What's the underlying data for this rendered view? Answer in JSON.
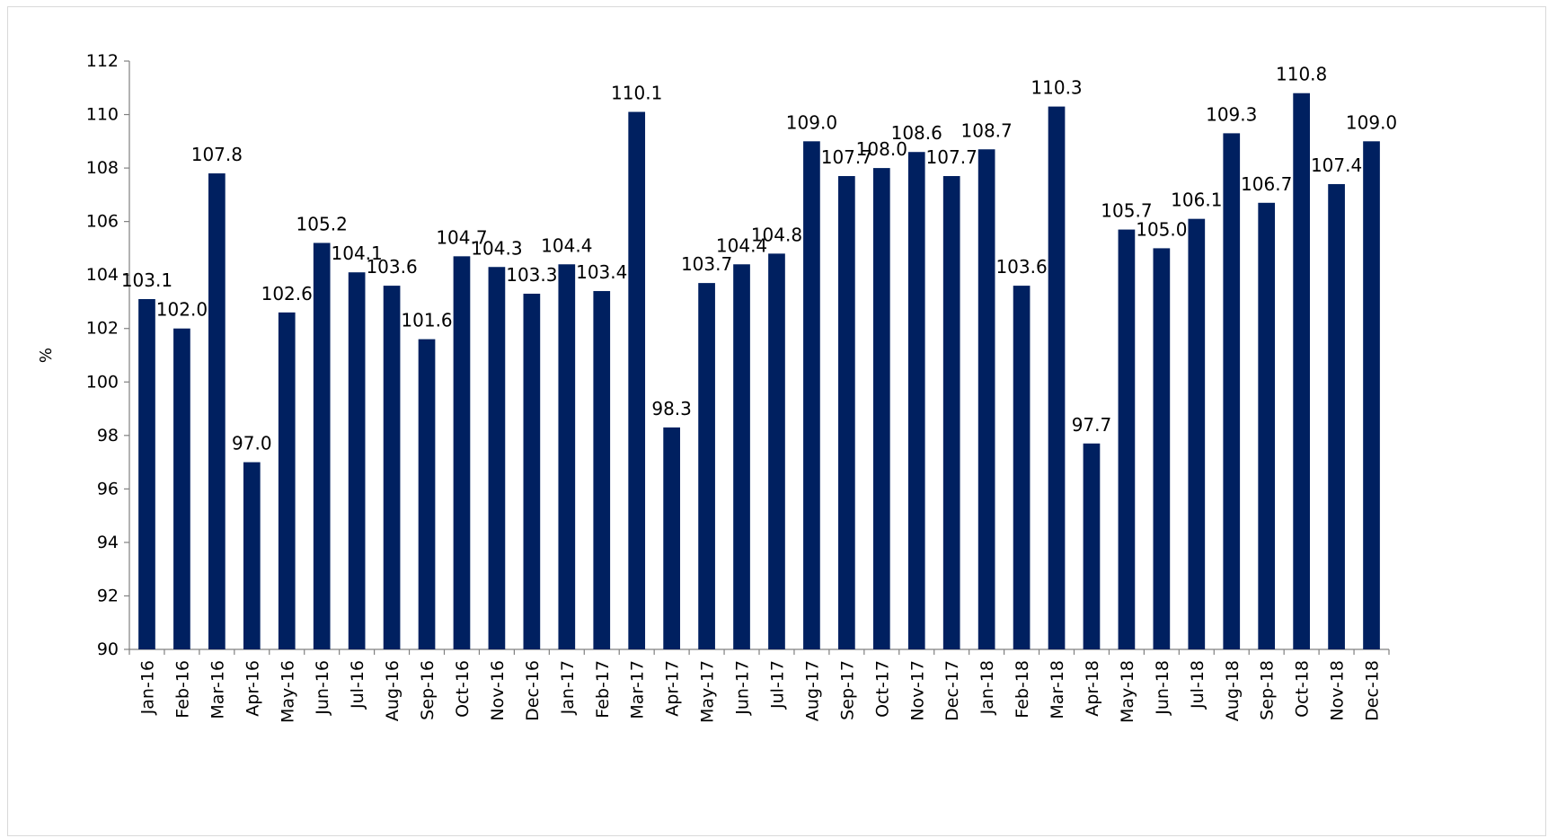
{
  "chart_data": {
    "type": "bar",
    "title": "",
    "xlabel": "",
    "ylabel": "%",
    "ylim": [
      90,
      112
    ],
    "yticks": [
      90,
      92,
      94,
      96,
      98,
      100,
      102,
      104,
      106,
      108,
      110,
      112
    ],
    "grid": false,
    "legend": "none",
    "bar_color": "#002060",
    "categories": [
      "Jan-16",
      "Feb-16",
      "Mar-16",
      "Apr-16",
      "May-16",
      "Jun-16",
      "Jul-16",
      "Aug-16",
      "Sep-16",
      "Oct-16",
      "Nov-16",
      "Dec-16",
      "Jan-17",
      "Feb-17",
      "Mar-17",
      "Apr-17",
      "May-17",
      "Jun-17",
      "Jul-17",
      "Aug-17",
      "Sep-17",
      "Oct-17",
      "Nov-17",
      "Dec-17",
      "Jan-18",
      "Feb-18",
      "Mar-18",
      "Apr-18",
      "May-18",
      "Jun-18",
      "Jul-18",
      "Aug-18",
      "Sep-18",
      "Oct-18",
      "Nov-18",
      "Dec-18"
    ],
    "values": [
      103.1,
      102.0,
      107.8,
      97.0,
      102.6,
      105.2,
      104.1,
      103.6,
      101.6,
      104.7,
      104.3,
      103.3,
      104.4,
      103.4,
      110.1,
      98.3,
      103.7,
      104.4,
      104.8,
      109.0,
      107.7,
      108.0,
      108.6,
      107.7,
      108.7,
      103.6,
      110.3,
      97.7,
      105.7,
      105.0,
      106.1,
      109.3,
      106.7,
      110.8,
      107.4,
      109.0
    ],
    "value_labels": [
      "103.1",
      "102.0",
      "107.8",
      "97.0",
      "102.6",
      "105.2",
      "104.1",
      "103.6",
      "101.6",
      "104.7",
      "104.3",
      "103.3",
      "104.4",
      "103.4",
      "110.1",
      "98.3",
      "103.7",
      "104.4",
      "104.8",
      "109.0",
      "107.7",
      "108.0",
      "108.6",
      "107.7",
      "108.7",
      "103.6",
      "110.3",
      "97.7",
      "105.7",
      "105.0",
      "106.1",
      "109.3",
      "106.7",
      "110.8",
      "107.4",
      "109.0"
    ]
  }
}
